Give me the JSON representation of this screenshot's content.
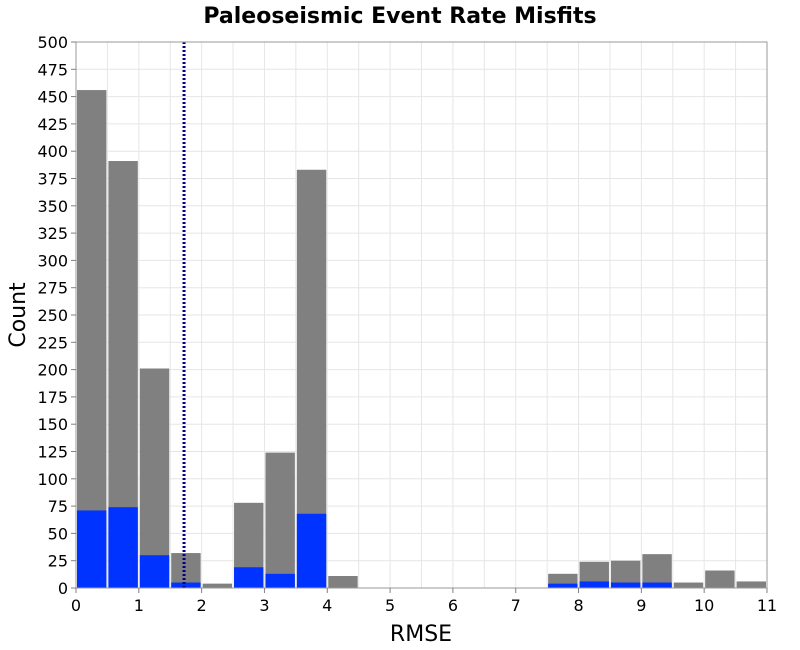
{
  "chart_data": {
    "type": "bar",
    "title": "Paleoseismic Event Rate Misfits",
    "xlabel": "RMSE",
    "ylabel": "Count",
    "xlim": [
      0,
      11
    ],
    "ylim": [
      0,
      500
    ],
    "x_ticks": [
      "0",
      "1",
      "2",
      "3",
      "4",
      "5",
      "6",
      "7",
      "8",
      "9",
      "10",
      "11"
    ],
    "y_ticks": [
      "0",
      "25",
      "50",
      "75",
      "100",
      "125",
      "150",
      "175",
      "200",
      "225",
      "250",
      "275",
      "300",
      "325",
      "350",
      "375",
      "400",
      "425",
      "450",
      "475",
      "500"
    ],
    "bin_width": 0.5,
    "bin_centers": [
      0.25,
      0.75,
      1.25,
      1.75,
      2.25,
      2.75,
      3.25,
      3.75,
      4.25,
      7.75,
      8.25,
      8.75,
      9.25,
      9.75,
      10.25,
      10.75
    ],
    "series": [
      {
        "values": [
          456,
          391,
          201,
          32,
          4,
          78,
          124,
          383,
          11,
          13,
          24,
          25,
          31,
          5,
          16,
          6
        ],
        "color": "#808080"
      },
      {
        "values": [
          71,
          74,
          30,
          5,
          0,
          19,
          13,
          68,
          0,
          4,
          6,
          5,
          5,
          0,
          0,
          0
        ],
        "color": "#0033ff"
      }
    ],
    "reference_line": {
      "x": 1.72,
      "color": "#000080",
      "style": "dotted"
    },
    "grid": true
  }
}
